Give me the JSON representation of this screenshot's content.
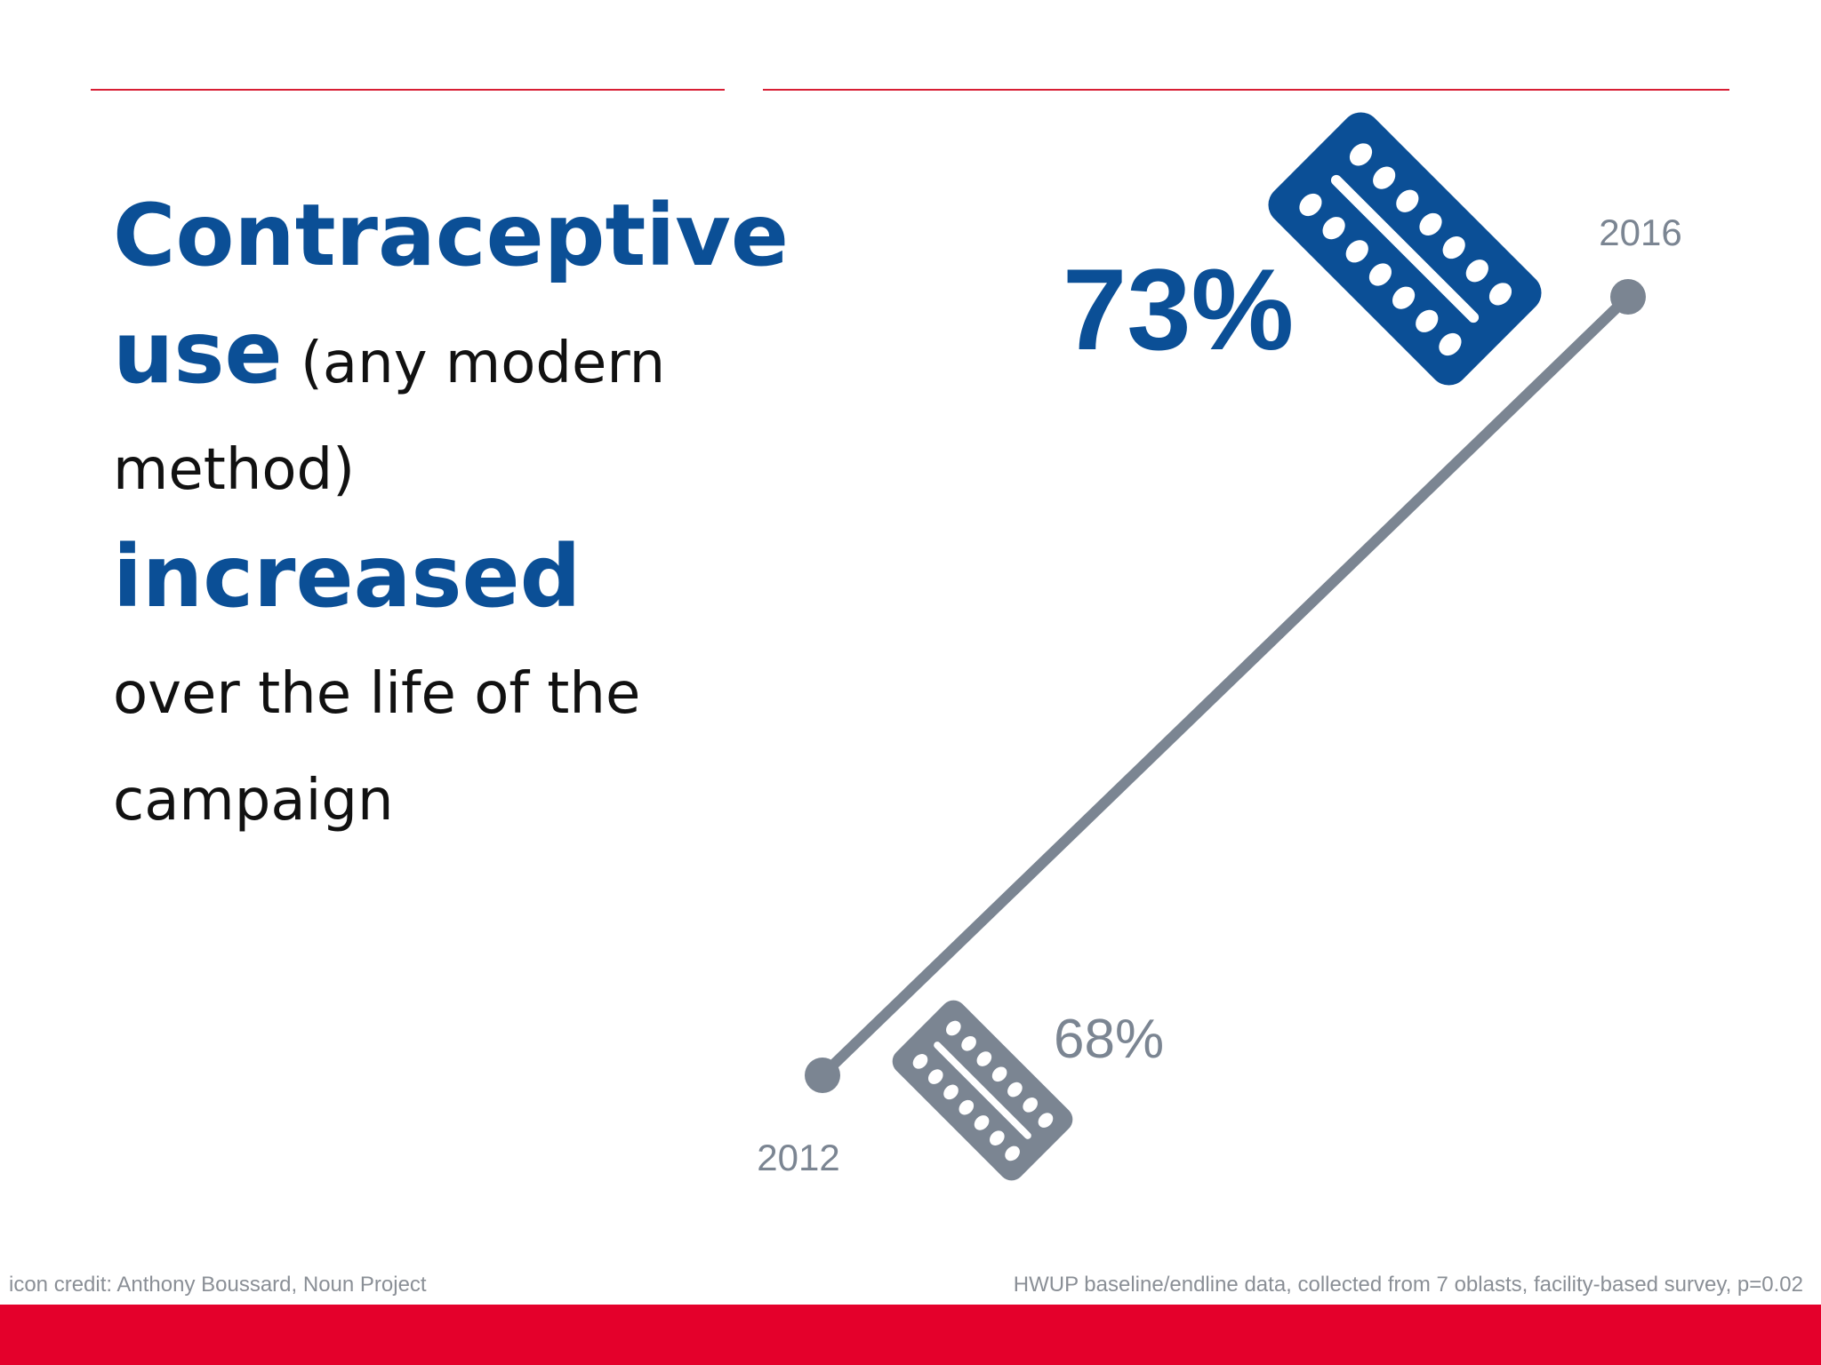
{
  "headline": {
    "part1": "Contraceptive",
    "part2": "use",
    "part3": " (any modern",
    "part4": "method) ",
    "part5": "increased",
    "part6": "over the life of the",
    "part7": "campaign"
  },
  "chart_data": {
    "type": "line",
    "x": [
      "2012",
      "2016"
    ],
    "series": [
      {
        "values": [
          68,
          73
        ]
      }
    ],
    "data_labels": [
      "68%",
      "73%"
    ],
    "colors": {
      "line": "#7b8592",
      "start_point": "#7b8592",
      "end_point": "#7b8592",
      "start_label": "#7b8592",
      "end_label": "#0b4f96",
      "start_icon": "#7b8592",
      "end_icon": "#0b4f96"
    },
    "icons": [
      "pill-pack-icon",
      "pill-pack-icon"
    ]
  },
  "footer": {
    "icon_credit": "icon credit: Anthony Boussard, Noun Project",
    "source": "HWUP baseline/endline data,  collected from 7 oblasts, facility-based survey, p=0.02"
  },
  "colors": {
    "accent_red": "#e4002b",
    "rule_red": "#d81e34",
    "brand_blue": "#0b4f96",
    "gray": "#7b8592"
  }
}
